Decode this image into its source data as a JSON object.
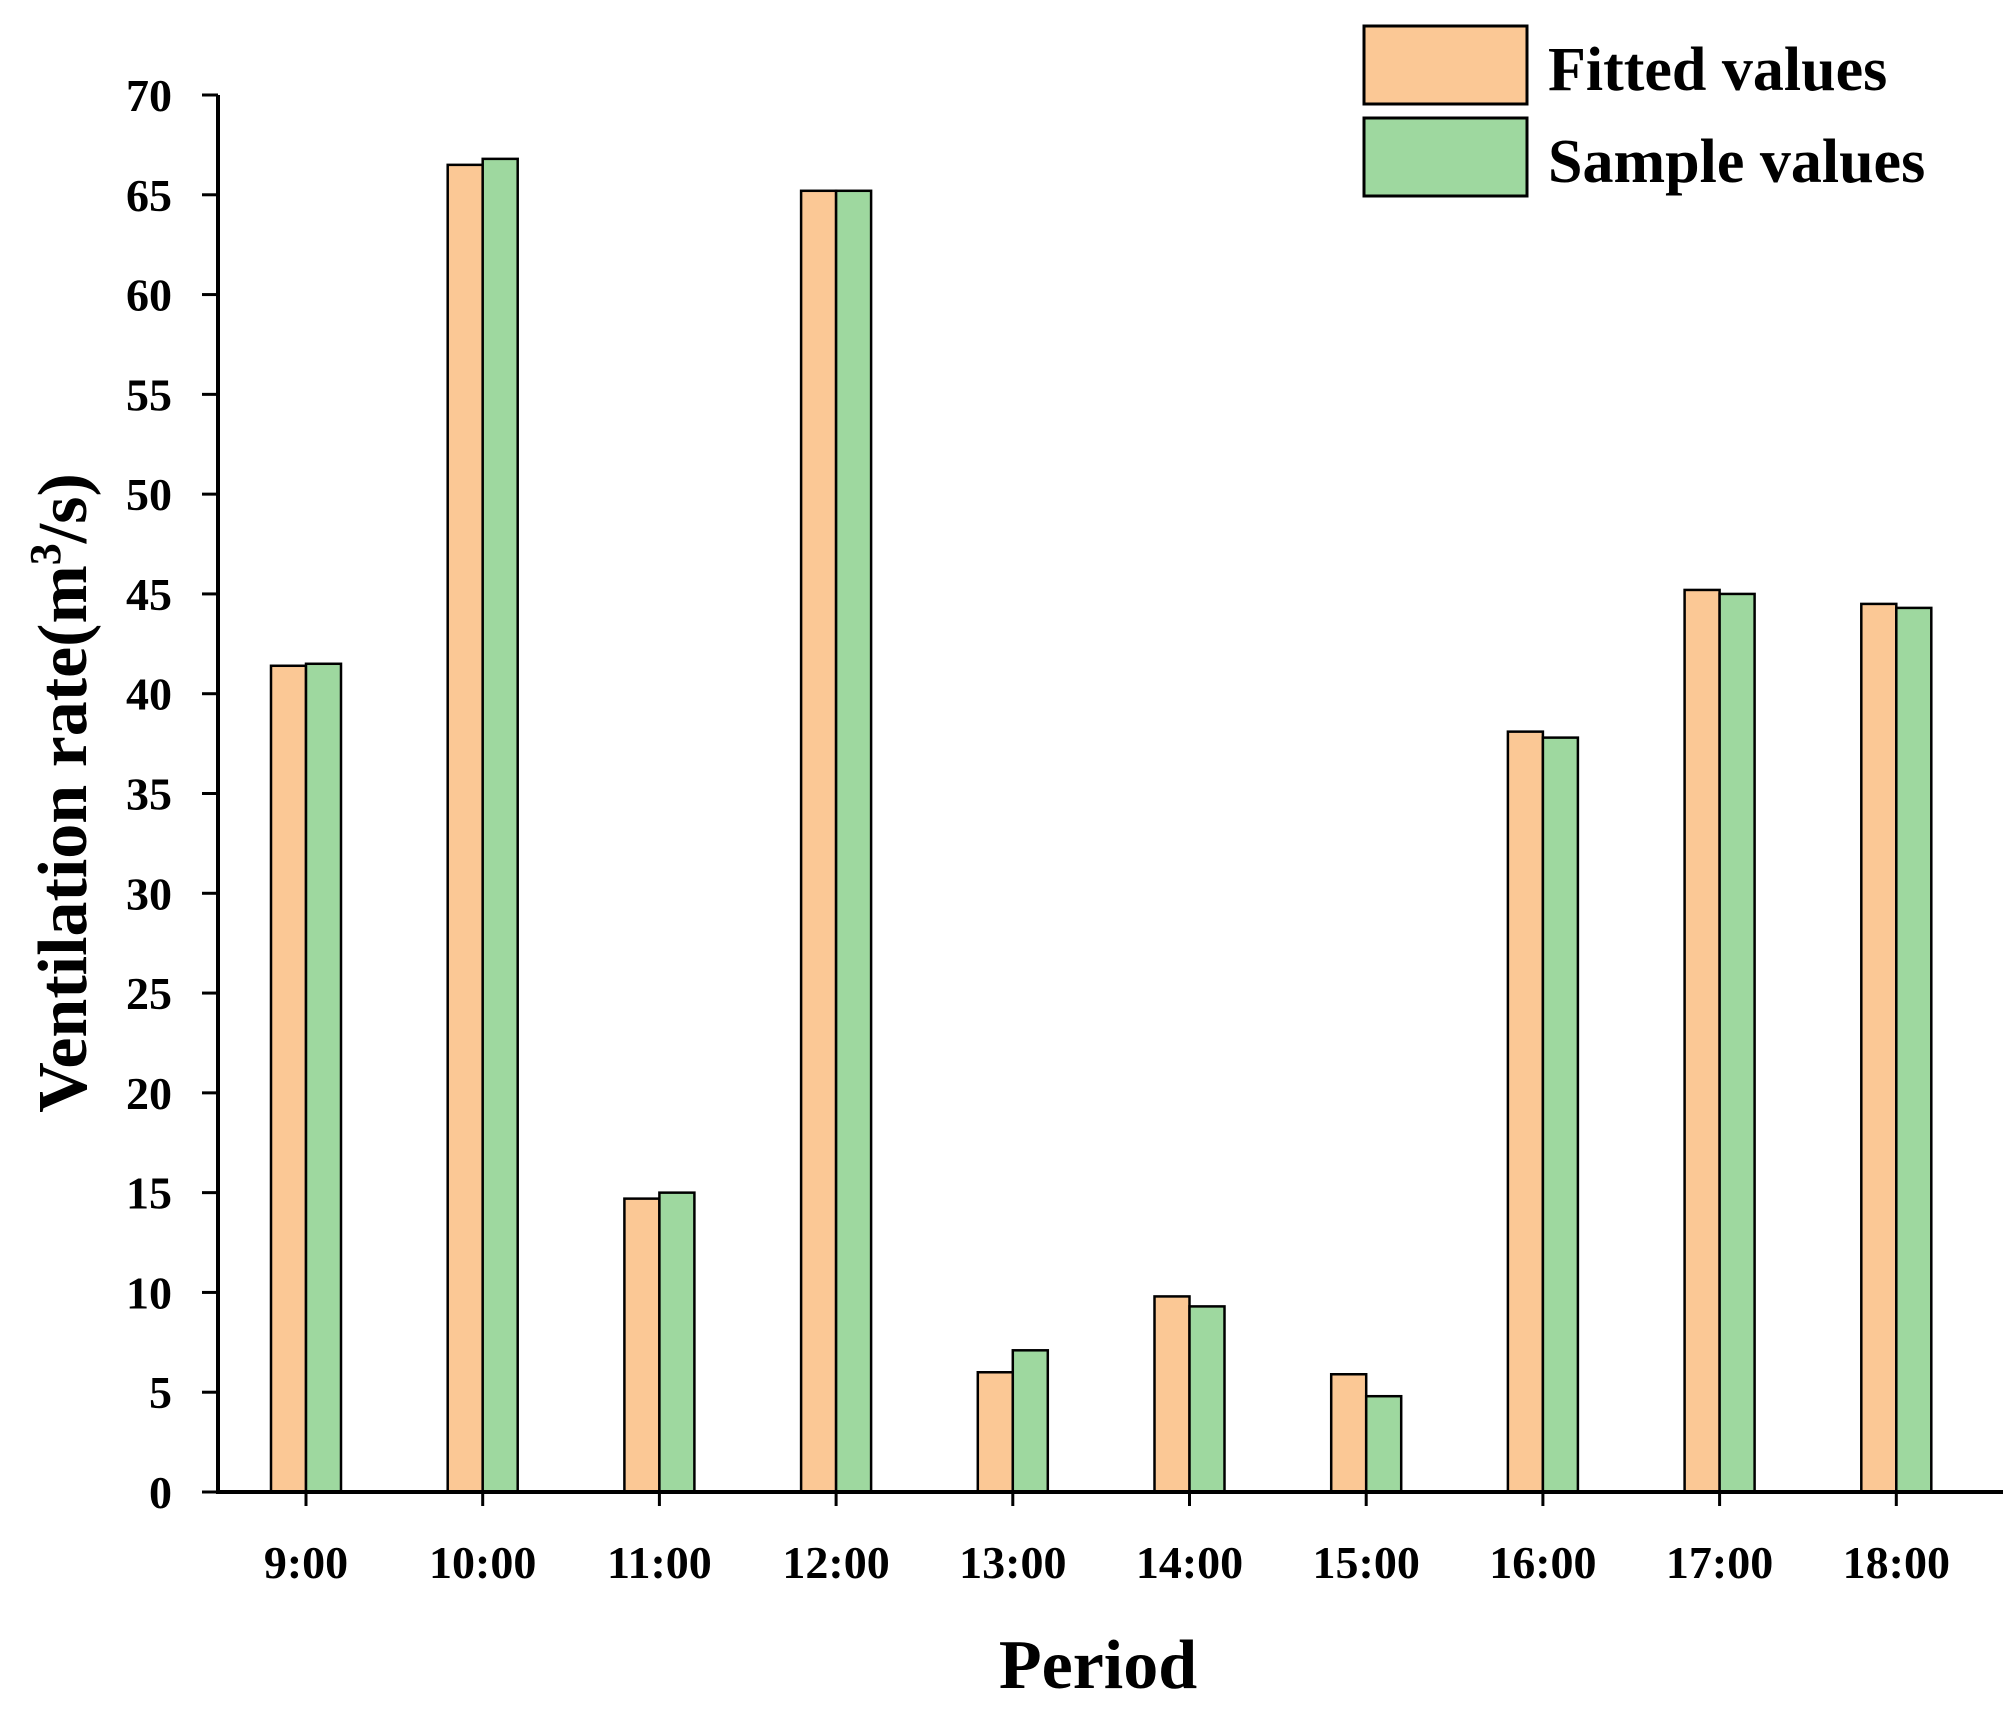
{
  "chart_data": {
    "type": "bar",
    "title": "",
    "xlabel": "Period",
    "ylabel": "Ventilation rate(m³/s)",
    "ylabel_parts": {
      "before": "Ventilation rate(m",
      "sup": "3",
      "after": "/s)"
    },
    "categories": [
      "9:00",
      "10:00",
      "11:00",
      "12:00",
      "13:00",
      "14:00",
      "15:00",
      "16:00",
      "17:00",
      "18:00"
    ],
    "series": [
      {
        "name": "Fitted values",
        "color": "#FBC895",
        "values": [
          41.4,
          66.5,
          14.7,
          65.2,
          6.0,
          9.8,
          5.9,
          38.1,
          45.2,
          44.5
        ]
      },
      {
        "name": "Sample values",
        "color": "#9ED89F",
        "values": [
          41.5,
          66.8,
          15.0,
          65.2,
          7.1,
          9.3,
          4.8,
          37.8,
          45.0,
          44.3
        ]
      }
    ],
    "ylim": [
      0,
      70
    ],
    "yticks": [
      "0",
      "5",
      "10",
      "15",
      "20",
      "25",
      "30",
      "35",
      "40",
      "45",
      "50",
      "55",
      "60",
      "65",
      "70"
    ],
    "grid": false,
    "legend_position": "top-right"
  }
}
